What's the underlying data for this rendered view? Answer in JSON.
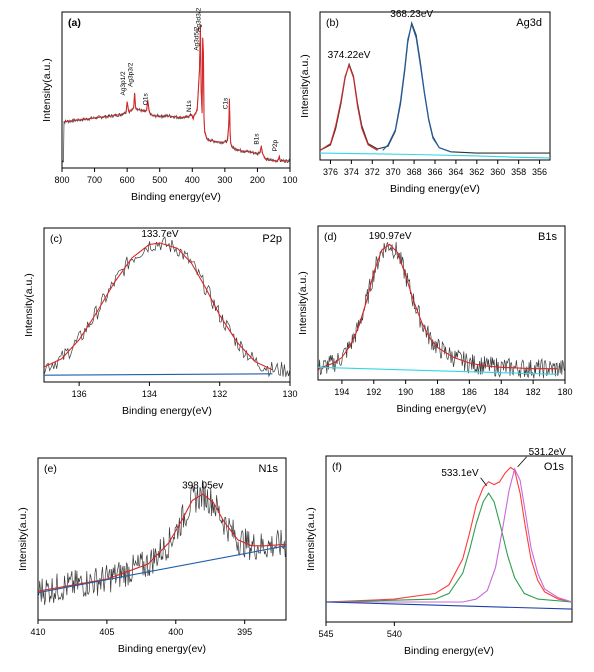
{
  "chart_data": [
    {
      "type": "line",
      "panel_label": "(a)",
      "title": "",
      "xlabel": "Binding energy(eV)",
      "ylabel": "Intensity(a.u.)",
      "xlim": [
        800,
        100
      ],
      "x_reversed": true,
      "xticks": [
        800,
        700,
        600,
        500,
        400,
        300,
        200,
        100
      ],
      "grid": false,
      "series": [
        {
          "color": "#d62828",
          "x": [
            795,
            760,
            720,
            690,
            650,
            620,
            610,
            603,
            600,
            595,
            585,
            580,
            577,
            574,
            570,
            560,
            545,
            540,
            537,
            533,
            530,
            527,
            520,
            500,
            470,
            440,
            420,
            410,
            402,
            400,
            397,
            395,
            385,
            378,
            375,
            373,
            370,
            368,
            366,
            364,
            362,
            355,
            340,
            320,
            300,
            292,
            288,
            286,
            284,
            282,
            276,
            250,
            220,
            200,
            192,
            188,
            184,
            175,
            150,
            140,
            136,
            133,
            130,
            120,
            105
          ],
          "y": [
            0.32,
            0.33,
            0.34,
            0.35,
            0.36,
            0.37,
            0.38,
            0.39,
            0.46,
            0.39,
            0.4,
            0.42,
            0.52,
            0.42,
            0.41,
            0.4,
            0.39,
            0.4,
            0.47,
            0.4,
            0.38,
            0.37,
            0.36,
            0.36,
            0.36,
            0.35,
            0.35,
            0.36,
            0.37,
            0.36,
            0.34,
            0.36,
            0.4,
            0.68,
            0.99,
            0.55,
            0.38,
            0.9,
            0.8,
            0.35,
            0.25,
            0.2,
            0.19,
            0.18,
            0.18,
            0.19,
            0.3,
            0.48,
            0.25,
            0.17,
            0.14,
            0.12,
            0.11,
            0.1,
            0.11,
            0.15,
            0.1,
            0.06,
            0.05,
            0.05,
            0.06,
            0.08,
            0.05,
            0.05,
            0.05
          ]
        }
      ],
      "annotations": [
        {
          "text": "Ag3p1/2",
          "x": 600
        },
        {
          "text": "Ag3p3/2",
          "x": 577
        },
        {
          "text": "O1s",
          "x": 532
        },
        {
          "text": "N1s",
          "x": 398
        },
        {
          "text": "Ag3d5/2",
          "x": 374
        },
        {
          "text": "Ag3d3/2",
          "x": 368
        },
        {
          "text": "C1s",
          "x": 285
        },
        {
          "text": "B1s",
          "x": 191
        },
        {
          "text": "P2p",
          "x": 134
        }
      ]
    },
    {
      "type": "line",
      "panel_label": "(b)",
      "title": "Ag3d",
      "xlabel": "Binding energy(eV)",
      "ylabel": "Intensity(a.u.)",
      "xlim": [
        377,
        355
      ],
      "x_reversed": true,
      "xticks": [
        376,
        374,
        372,
        370,
        368,
        366,
        364,
        362,
        360,
        358,
        356
      ],
      "grid": false,
      "peaks": [
        {
          "label": "374.22eV",
          "x": 374.22
        },
        {
          "label": "368.23eV",
          "x": 368.23
        }
      ],
      "series": [
        {
          "color": "#333333",
          "x": [
            377,
            376,
            375.5,
            375,
            374.6,
            374.22,
            373.8,
            373.4,
            373,
            372.4,
            371.5,
            370.5,
            369.8,
            369.3,
            368.9,
            368.6,
            368.23,
            367.8,
            367.4,
            367,
            366.6,
            366.2,
            365.6,
            364.5,
            362,
            358,
            355
          ],
          "y": [
            0.04,
            0.08,
            0.2,
            0.38,
            0.57,
            0.67,
            0.58,
            0.38,
            0.22,
            0.09,
            0.05,
            0.07,
            0.18,
            0.38,
            0.62,
            0.83,
            0.97,
            0.88,
            0.68,
            0.46,
            0.27,
            0.14,
            0.06,
            0.03,
            0.02,
            0.02,
            0.02
          ]
        },
        {
          "color": "#d62828",
          "x": [
            377,
            376,
            375.5,
            375,
            374.6,
            374.22,
            373.8,
            373.4,
            373,
            372.4,
            371.5
          ],
          "y": [
            0.04,
            0.09,
            0.22,
            0.4,
            0.58,
            0.66,
            0.57,
            0.36,
            0.2,
            0.08,
            0.04
          ]
        },
        {
          "color": "#1f5fa8",
          "x": [
            371,
            370.5,
            369.8,
            369.3,
            368.9,
            368.6,
            368.23,
            367.8,
            367.4,
            367,
            366.6,
            366.2,
            365.6,
            364.5
          ],
          "y": [
            0.04,
            0.08,
            0.19,
            0.4,
            0.64,
            0.85,
            0.96,
            0.86,
            0.66,
            0.45,
            0.26,
            0.13,
            0.06,
            0.03
          ]
        },
        {
          "color": "#33d6e6",
          "x": [
            377,
            372,
            368,
            362,
            358,
            355
          ],
          "y": [
            0.02,
            0.015,
            0.01,
            0.0,
            -0.01,
            -0.015
          ]
        }
      ]
    },
    {
      "type": "line",
      "panel_label": "(c)",
      "title": "P2p",
      "xlabel": "Binding energy(eV)",
      "ylabel": "Intensity(a.u.)",
      "xlim": [
        137,
        130
      ],
      "x_reversed": true,
      "xticks": [
        136,
        134,
        132,
        130
      ],
      "grid": false,
      "peaks": [
        {
          "label": "133.7eV",
          "x": 133.7
        }
      ],
      "series": [
        {
          "color": "#d62828",
          "x": [
            137,
            136.5,
            136,
            135.5,
            135,
            134.5,
            134,
            133.7,
            133.2,
            132.8,
            132.4,
            132,
            131.5,
            131,
            130.5
          ],
          "y": [
            0.06,
            0.12,
            0.26,
            0.46,
            0.68,
            0.86,
            0.96,
            0.97,
            0.93,
            0.82,
            0.64,
            0.44,
            0.24,
            0.1,
            0.04
          ]
        },
        {
          "color": "#1f5fa8",
          "x": [
            137,
            130.5
          ],
          "y": [
            0.0,
            0.01
          ]
        }
      ]
    },
    {
      "type": "line",
      "panel_label": "(d)",
      "title": "B1s",
      "xlabel": "Binding energy(eV)",
      "ylabel": "Intensity(a.u.)",
      "xlim": [
        195.5,
        180
      ],
      "x_reversed": true,
      "xticks": [
        194,
        192,
        190,
        188,
        186,
        184,
        182,
        180
      ],
      "grid": false,
      "peaks": [
        {
          "label": "190.97eV",
          "x": 190.97
        }
      ],
      "series": [
        {
          "color": "#d62828",
          "x": [
            195.5,
            194.5,
            194,
            193.5,
            193,
            192.5,
            192,
            191.5,
            191,
            190.5,
            190,
            189.5,
            189,
            188.5,
            188,
            187,
            186,
            185,
            184,
            182,
            180.5
          ],
          "y": [
            0.04,
            0.08,
            0.12,
            0.2,
            0.32,
            0.5,
            0.72,
            0.88,
            0.92,
            0.86,
            0.7,
            0.52,
            0.37,
            0.26,
            0.19,
            0.12,
            0.08,
            0.06,
            0.05,
            0.04,
            0.04
          ]
        },
        {
          "color": "#33d6e6",
          "x": [
            195.5,
            180.5
          ],
          "y": [
            0.05,
            0.0
          ]
        }
      ]
    },
    {
      "type": "line",
      "panel_label": "(e)",
      "title": "N1s",
      "xlabel": "Binding energy(ev)",
      "ylabel": "Intensity(a.u.)",
      "xlim": [
        410,
        392
      ],
      "x_reversed": true,
      "xticks": [
        410,
        405,
        400,
        395
      ],
      "grid": false,
      "peaks": [
        {
          "label": "398.05ev",
          "x": 398.05
        }
      ],
      "series": [
        {
          "color": "#d62828",
          "x": [
            410,
            405,
            402,
            400.5,
            399.5,
            398.8,
            398.05,
            397.3,
            396.5,
            395.5,
            394.5,
            393.5,
            392
          ],
          "y": [
            0.04,
            0.12,
            0.22,
            0.36,
            0.52,
            0.64,
            0.68,
            0.63,
            0.5,
            0.38,
            0.34,
            0.34,
            0.35
          ]
        },
        {
          "color": "#1f5fa8",
          "x": [
            410,
            392
          ],
          "y": [
            0.03,
            0.34
          ]
        }
      ]
    },
    {
      "type": "line",
      "panel_label": "(f)",
      "title": "O1s",
      "xlabel": "Binding energy(eV)",
      "ylabel": "Intensity(a.u.)",
      "xlim": [
        545,
        527
      ],
      "x_reversed": true,
      "xticks": [
        545,
        540
      ],
      "grid": false,
      "peaks": [
        {
          "label": "533.1eV",
          "x": 533.1
        },
        {
          "label": "531.2eV",
          "x": 531.2
        }
      ],
      "series": [
        {
          "color": "#ff3b3b",
          "x": [
            545,
            540,
            537,
            536,
            535,
            534.5,
            534,
            533.5,
            533.1,
            532.7,
            532.3,
            531.9,
            531.5,
            531.2,
            530.8,
            530.4,
            530,
            529.5,
            529,
            528,
            527
          ],
          "y": [
            0.0,
            0.02,
            0.06,
            0.12,
            0.3,
            0.48,
            0.68,
            0.8,
            0.84,
            0.82,
            0.84,
            0.9,
            0.94,
            0.92,
            0.76,
            0.52,
            0.3,
            0.15,
            0.07,
            0.02,
            0.0
          ]
        },
        {
          "color": "#2e9e4f",
          "x": [
            545,
            537,
            536,
            535,
            534.5,
            534,
            533.5,
            533.1,
            532.7,
            532.2,
            531.7,
            531.2,
            530.5,
            529.5,
            527
          ],
          "y": [
            0.0,
            0.02,
            0.06,
            0.2,
            0.36,
            0.55,
            0.7,
            0.76,
            0.7,
            0.52,
            0.32,
            0.17,
            0.06,
            0.02,
            0.0
          ]
        },
        {
          "color": "#c86ad8",
          "x": [
            545,
            535,
            534,
            533.2,
            532.6,
            532.1,
            531.6,
            531.2,
            530.8,
            530.4,
            530,
            529.5,
            529,
            528,
            527
          ],
          "y": [
            0.0,
            0.0,
            0.02,
            0.08,
            0.24,
            0.5,
            0.78,
            0.93,
            0.85,
            0.62,
            0.38,
            0.2,
            0.09,
            0.03,
            0.0
          ]
        },
        {
          "color": "#1f3fa8",
          "x": [
            545,
            527
          ],
          "y": [
            0.0,
            -0.05
          ]
        }
      ]
    }
  ]
}
